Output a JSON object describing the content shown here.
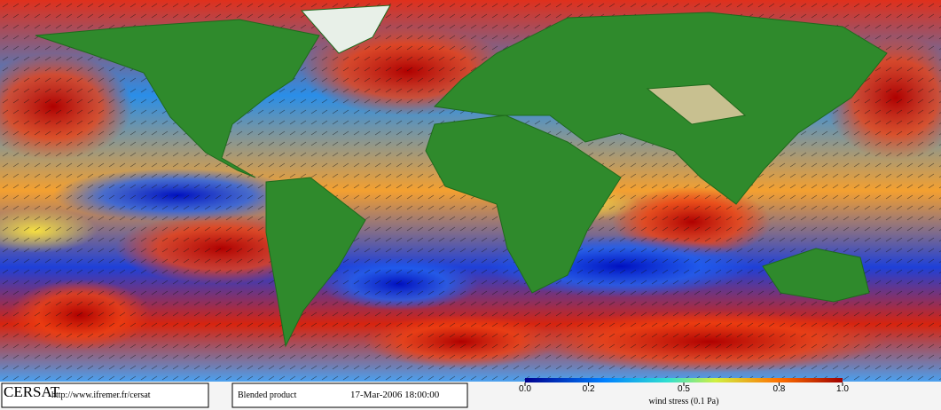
{
  "footer": {
    "logo": "CERSAT",
    "url": "http://www.ifremer.fr/cersat",
    "product": "Blended product",
    "date": "17-Mar-2006 18:00:00"
  },
  "colorbar": {
    "label": "wind stress (0.1 Pa)",
    "lim": [
      0,
      1
    ],
    "ticks": [
      {
        "value": 0,
        "label": "0.0"
      },
      0.2,
      0.5,
      0.8,
      {
        "value": 1,
        "label": "1.0"
      }
    ]
  }
}
